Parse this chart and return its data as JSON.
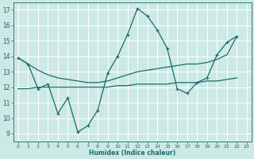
{
  "xlabel": "Humidex (Indice chaleur)",
  "background_color": "#cce9e5",
  "grid_color": "#ffffff",
  "line_color": "#1a6b6b",
  "xlim": [
    -0.5,
    23.5
  ],
  "ylim": [
    8.5,
    17.5
  ],
  "yticks": [
    9,
    10,
    11,
    12,
    13,
    14,
    15,
    16,
    17
  ],
  "xticks": [
    0,
    1,
    2,
    3,
    4,
    5,
    6,
    7,
    8,
    9,
    10,
    11,
    12,
    13,
    14,
    15,
    16,
    17,
    18,
    19,
    20,
    21,
    22,
    23
  ],
  "series_zigzag": {
    "x": [
      0,
      1,
      2,
      3,
      4,
      5,
      6,
      7,
      8,
      9,
      10,
      11,
      12,
      13,
      14,
      15,
      16,
      17,
      18,
      19,
      20,
      21,
      22
    ],
    "y": [
      13.9,
      13.5,
      11.9,
      12.2,
      10.3,
      11.3,
      9.1,
      9.5,
      10.5,
      12.9,
      14.0,
      15.4,
      17.1,
      16.6,
      15.7,
      14.5,
      11.9,
      11.6,
      12.3,
      12.6,
      14.1,
      14.9,
      15.3
    ]
  },
  "series_upper": {
    "x": [
      0,
      1,
      2,
      3,
      4,
      5,
      6,
      7,
      8,
      9,
      10,
      11,
      12,
      13,
      14,
      15,
      16,
      17,
      18,
      19,
      20,
      21,
      22
    ],
    "y": [
      13.9,
      13.5,
      13.1,
      12.8,
      12.6,
      12.5,
      12.4,
      12.3,
      12.3,
      12.4,
      12.6,
      12.8,
      13.0,
      13.1,
      13.2,
      13.3,
      13.4,
      13.5,
      13.5,
      13.6,
      13.8,
      14.1,
      15.3
    ]
  },
  "series_lower": {
    "x": [
      0,
      1,
      2,
      3,
      4,
      5,
      6,
      7,
      8,
      9,
      10,
      11,
      12,
      13,
      14,
      15,
      16,
      17,
      18,
      19,
      20,
      21,
      22
    ],
    "y": [
      11.9,
      11.9,
      12.0,
      12.0,
      12.0,
      12.0,
      12.0,
      12.0,
      12.0,
      12.0,
      12.1,
      12.1,
      12.2,
      12.2,
      12.2,
      12.2,
      12.3,
      12.3,
      12.3,
      12.4,
      12.4,
      12.5,
      12.6
    ]
  }
}
